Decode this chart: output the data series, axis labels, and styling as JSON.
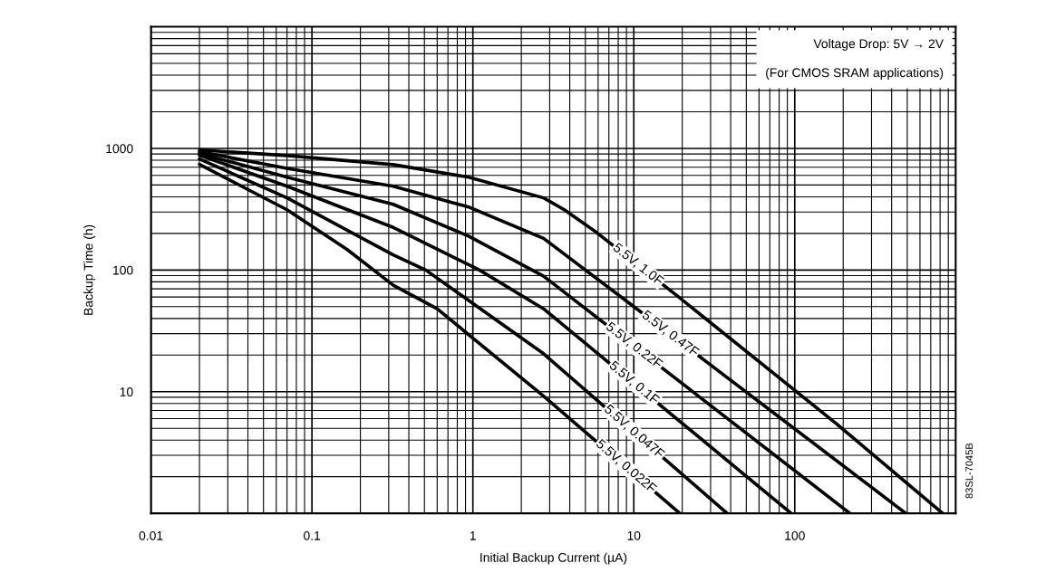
{
  "chart_data": {
    "type": "line",
    "xlabel": "Initial Backup Current (µA)",
    "ylabel": "Backup Time (h)",
    "log": "xy",
    "grid": true,
    "legend": false,
    "marker": "none",
    "line_style": "solid",
    "xlim": [
      0.01,
      1000
    ],
    "ylim": [
      1,
      10000
    ],
    "xticks": [
      0.01,
      0.1,
      1,
      10,
      100
    ],
    "yticks": [
      10,
      100,
      1000
    ],
    "series": [
      {
        "name": "5.5V, 1.0F",
        "color": "#000000",
        "x": [
          0.02,
          0.07,
          0.32,
          0.94,
          2.75,
          3.7,
          5.75,
          19,
          180,
          830
        ],
        "values": [
          970,
          873,
          736,
          580,
          392,
          313,
          208,
          60,
          5.5,
          1
        ]
      },
      {
        "name": "5.5V, 0.47F",
        "color": "#000000",
        "x": [
          0.02,
          0.07,
          0.32,
          0.94,
          2.75,
          10,
          490
        ],
        "values": [
          940,
          686,
          489,
          330,
          182,
          50,
          1
        ]
      },
      {
        "name": "5.5V, 0.22F",
        "color": "#000000",
        "x": [
          0.02,
          0.07,
          0.32,
          0.94,
          2.75,
          220
        ],
        "values": [
          910,
          580,
          347,
          190,
          89,
          1
        ]
      },
      {
        "name": "5.5V, 0.1F",
        "color": "#000000",
        "x": [
          0.02,
          0.07,
          0.32,
          1.1,
          2.75,
          95
        ],
        "values": [
          880,
          489,
          224,
          100,
          48,
          1
        ]
      },
      {
        "name": "5.5V, 0.047F",
        "color": "#000000",
        "x": [
          0.02,
          0.07,
          0.32,
          0.51,
          2.75,
          38
        ],
        "values": [
          820,
          392,
          133,
          100,
          20.5,
          1
        ]
      },
      {
        "name": "5.5V, 0.022F",
        "color": "#000000",
        "x": [
          0.02,
          0.07,
          0.165,
          0.32,
          0.6,
          2.75,
          19.3
        ],
        "values": [
          740,
          313,
          148,
          75,
          48,
          9.2,
          1
        ]
      }
    ],
    "annotations": [
      "Voltage Drop: 5V → 2V",
      "(For CMOS SRAM applications)",
      "83SL-7045B"
    ]
  }
}
